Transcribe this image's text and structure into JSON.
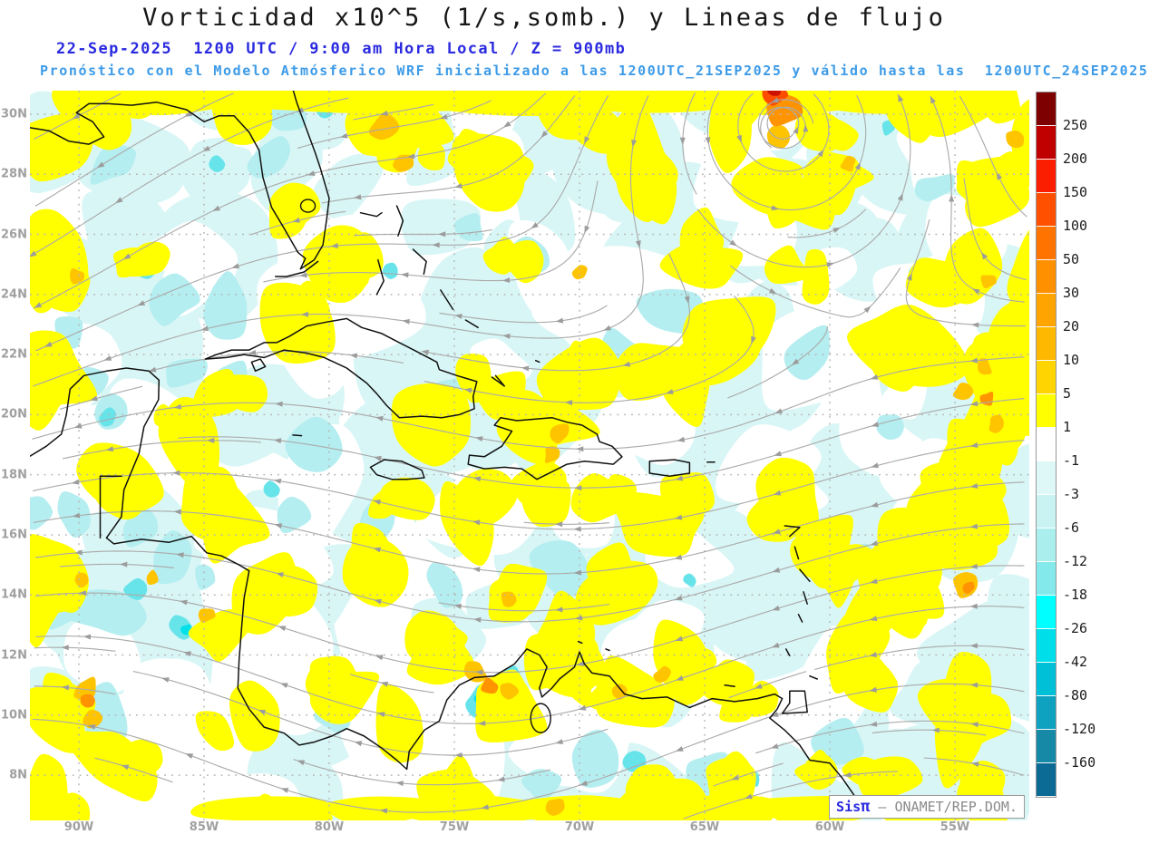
{
  "header": {
    "title": "Vorticidad x10^5 (1/s,somb.) y Lineas de flujo",
    "valid_line": "22-Sep-2025  1200 UTC / 9:00 am Hora Local / Z = 900mb",
    "forecast_line": "Pronóstico con el Modelo Atmósferico WRF inicializado a las 1200UTC_21SEP2025 y válido hasta las  1200UTC_24SEP2025"
  },
  "axes": {
    "lat_labels": [
      "30N",
      "28N",
      "26N",
      "24N",
      "22N",
      "20N",
      "18N",
      "16N",
      "14N",
      "12N",
      "10N",
      "8N"
    ],
    "lon_labels": [
      "90W",
      "85W",
      "80W",
      "75W",
      "70W",
      "65W",
      "60W",
      "55W"
    ]
  },
  "colorbar": {
    "tick_labels": [
      "250",
      "200",
      "150",
      "100",
      "50",
      "30",
      "20",
      "10",
      "5",
      "1",
      "-1",
      "-3",
      "-6",
      "-12",
      "-18",
      "-26",
      "-42",
      "-80",
      "-120",
      "-160"
    ],
    "segment_colors": [
      "#7e0000",
      "#c00000",
      "#fb1e00",
      "#ff5000",
      "#ff7400",
      "#ff9000",
      "#ffa400",
      "#ffb800",
      "#ffd400",
      "#ffff00",
      "#ffffff",
      "#def7f7",
      "#c9f3f3",
      "#abeeee",
      "#84e9ea",
      "#00ffff",
      "#00dfe9",
      "#00c0d8",
      "#0fa2c0",
      "#1689a6",
      "#0c6b95"
    ]
  },
  "branding": {
    "app": "Sis",
    "pi": "π",
    "org": " — ONAMET/REP.DOM."
  },
  "map_palette": {
    "negative_weak": "#d9f6f6",
    "negative_mid": "#b5eef0",
    "negative_strong": "#67e4ea",
    "negative_vivid": "#00e0ea",
    "positive_weak": "#ffff00",
    "positive_mid": "#ffc400",
    "positive_strong": "#ff9400",
    "positive_extreme": "#ff4d00",
    "positive_max": "#cc1100",
    "streamline": "#ababab",
    "coastline": "#111111",
    "grid": "#b5b5b5"
  },
  "chart_data": {
    "type": "heatmap",
    "title": "Vorticidad x10^5 (1/s,somb.) y Lineas de flujo",
    "field": "relative vorticity x10^5 (1/s, shaded) with streamlines",
    "level": "900mb",
    "valid_time": "22-Sep-2025 1200 UTC / 9:00 am Hora Local",
    "model_run": "WRF inicializado 1200UTC_21SEP2025",
    "valid_until": "1200UTC_24SEP2025",
    "lat_ticks": [
      "30N",
      "28N",
      "26N",
      "24N",
      "22N",
      "20N",
      "18N",
      "16N",
      "14N",
      "12N",
      "10N",
      "8N"
    ],
    "lon_ticks": [
      "90W",
      "85W",
      "80W",
      "75W",
      "70W",
      "65W",
      "60W",
      "55W"
    ],
    "shading_levels": [
      250,
      200,
      150,
      100,
      50,
      30,
      20,
      10,
      5,
      1,
      -1,
      -3,
      -6,
      -12,
      -18,
      -26,
      -42,
      -80,
      -120,
      -160
    ],
    "notable_features": [
      "positive vorticity maximum with cyclonic circulation near 30N 62W",
      "diagonal positive vorticity band in tropical Atlantic near 58W",
      "positive vorticity over Colombia/Venezuela coast"
    ]
  }
}
